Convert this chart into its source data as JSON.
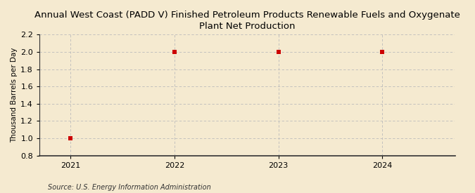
{
  "title": "Annual West Coast (PADD V) Finished Petroleum Products Renewable Fuels and Oxygenate\nPlant Net Production",
  "ylabel": "Thousand Barrels per Day",
  "source": "Source: U.S. Energy Information Administration",
  "x_values": [
    2021,
    2022,
    2023,
    2024
  ],
  "y_values": [
    1.0,
    2.0,
    2.0,
    2.0
  ],
  "xlim": [
    2020.7,
    2024.7
  ],
  "ylim": [
    0.8,
    2.2
  ],
  "yticks": [
    0.8,
    1.0,
    1.2,
    1.4,
    1.6,
    1.8,
    2.0,
    2.2
  ],
  "xticks": [
    2021,
    2022,
    2023,
    2024
  ],
  "marker_color": "#cc0000",
  "marker": "s",
  "marker_size": 4,
  "background_color": "#f5ead0",
  "plot_bg_color": "#f5ead0",
  "grid_color": "#bbbbbb",
  "title_fontsize": 9.5,
  "axis_label_fontsize": 7.5,
  "tick_fontsize": 8.0,
  "source_fontsize": 7.0
}
